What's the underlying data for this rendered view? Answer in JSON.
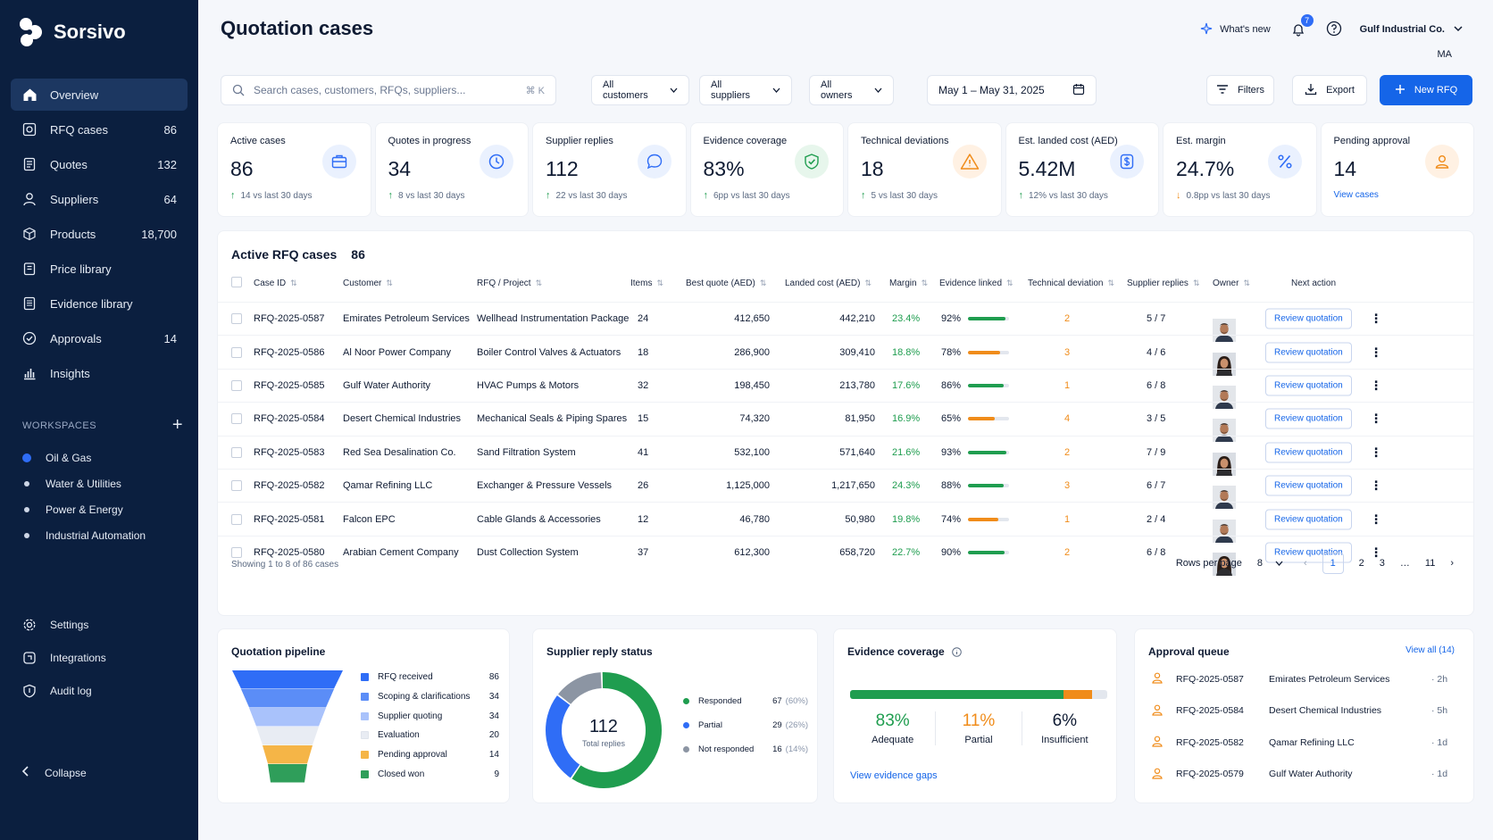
{
  "app": {
    "brand": "Sorsivo",
    "page_title": "Quotation cases"
  },
  "sidebar": {
    "items": [
      {
        "label": "Overview",
        "count": "",
        "icon": "home-icon",
        "active": true
      },
      {
        "label": "RFQ cases",
        "count": "86",
        "icon": "rfq-icon"
      },
      {
        "label": "Quotes",
        "count": "132",
        "icon": "quote-icon"
      },
      {
        "label": "Suppliers",
        "count": "64",
        "icon": "supplier-icon"
      },
      {
        "label": "Products",
        "count": "18,700",
        "icon": "cube-icon"
      },
      {
        "label": "Price library",
        "count": "",
        "icon": "price-library-icon"
      },
      {
        "label": "Evidence library",
        "count": "",
        "icon": "evidence-library-icon"
      },
      {
        "label": "Approvals",
        "count": "14",
        "icon": "check-circle-icon"
      },
      {
        "label": "Insights",
        "count": "",
        "icon": "bar-chart-icon"
      }
    ],
    "workspaces_label": "WORKSPACES",
    "workspaces": [
      "Oil & Gas",
      "Water & Utilities",
      "Power & Energy",
      "Industrial Automation"
    ],
    "bottom_items": [
      {
        "label": "Settings",
        "icon": "gear-icon"
      },
      {
        "label": "Integrations",
        "icon": "integrations-icon"
      },
      {
        "label": "Audit log",
        "icon": "shield-icon"
      }
    ],
    "collapse_label": "Collapse"
  },
  "header": {
    "whats_new": "What's new",
    "notifications": "7",
    "org_name": "Gulf Industrial Co.",
    "org_sub": "MA"
  },
  "toolbar": {
    "search_placeholder": "Search cases, customers, RFQs, suppliers...",
    "search_shortcut": "⌘ K",
    "customers": "All customers",
    "suppliers": "All suppliers",
    "owners": "All owners",
    "date_range": "May 1 – May 31, 2025",
    "filters": "Filters",
    "export": "Export",
    "new_rfq": "New RFQ"
  },
  "kpis": [
    {
      "label": "Active cases",
      "value": "86",
      "delta": "14 vs last 30 days",
      "dir": "up",
      "icon": "briefcase-icon",
      "bg": "#eaf1fe",
      "fg": "#2f6df6"
    },
    {
      "label": "Quotes in progress",
      "value": "34",
      "delta": "8 vs last 30 days",
      "dir": "up",
      "icon": "clock-icon",
      "bg": "#eaf1fe",
      "fg": "#2f6df6"
    },
    {
      "label": "Supplier replies",
      "value": "112",
      "delta": "22 vs last 30 days",
      "dir": "up",
      "icon": "chat-icon",
      "bg": "#eaf1fe",
      "fg": "#2f6df6"
    },
    {
      "label": "Evidence coverage",
      "value": "83%",
      "delta": "6pp vs last 30 days",
      "dir": "up",
      "icon": "shield-check-icon",
      "bg": "#e7f6ec",
      "fg": "#1f9d4f"
    },
    {
      "label": "Technical deviations",
      "value": "18",
      "delta": "5 vs last 30 days",
      "dir": "up",
      "icon": "warning-icon",
      "bg": "#fff1e3",
      "fg": "#f08c1a"
    },
    {
      "label": "Est. landed cost (AED)",
      "value": "5.42M",
      "delta": "12% vs last 30 days",
      "dir": "up",
      "icon": "currency-icon",
      "bg": "#eaf1fe",
      "fg": "#2f6df6"
    },
    {
      "label": "Est. margin",
      "value": "24.7%",
      "delta": "0.8pp vs last 30 days",
      "dir": "down",
      "icon": "percent-icon",
      "bg": "#eaf1fe",
      "fg": "#2f6df6"
    },
    {
      "label": "Pending approval",
      "value": "14",
      "delta": "",
      "link": "View cases",
      "icon": "user-pending-icon",
      "bg": "#fff1e3",
      "fg": "#f08c1a"
    }
  ],
  "table": {
    "title": "Active RFQ cases",
    "count": "86",
    "columns": [
      "Case ID",
      "Customer",
      "RFQ / Project",
      "Items",
      "Best quote (AED)",
      "Landed cost (AED)",
      "Margin",
      "Evidence linked",
      "Technical deviation",
      "Supplier replies",
      "Owner",
      "Next action"
    ],
    "action_label": "Review quotation",
    "rows": [
      {
        "id": "RFQ-2025-0587",
        "customer": "Emirates Petroleum Services",
        "project": "Wellhead Instrumentation Package",
        "items": "24",
        "best": "412,650",
        "landed": "442,210",
        "margin": "23.4%",
        "evidence": "92%",
        "ev": 0.92,
        "dev": "2",
        "replies": "5 / 7",
        "owner": "m"
      },
      {
        "id": "RFQ-2025-0586",
        "customer": "Al Noor Power Company",
        "project": "Boiler Control Valves & Actuators",
        "items": "18",
        "best": "286,900",
        "landed": "309,410",
        "margin": "18.8%",
        "evidence": "78%",
        "ev": 0.78,
        "dev": "3",
        "replies": "4 / 6",
        "owner": "f"
      },
      {
        "id": "RFQ-2025-0585",
        "customer": "Gulf Water Authority",
        "project": "HVAC Pumps & Motors",
        "items": "32",
        "best": "198,450",
        "landed": "213,780",
        "margin": "17.6%",
        "evidence": "86%",
        "ev": 0.86,
        "dev": "1",
        "replies": "6 / 8",
        "owner": "m"
      },
      {
        "id": "RFQ-2025-0584",
        "customer": "Desert Chemical Industries",
        "project": "Mechanical Seals & Piping Spares",
        "items": "15",
        "best": "74,320",
        "landed": "81,950",
        "margin": "16.9%",
        "evidence": "65%",
        "ev": 0.65,
        "dev": "4",
        "replies": "3 / 5",
        "owner": "m"
      },
      {
        "id": "RFQ-2025-0583",
        "customer": "Red Sea Desalination Co.",
        "project": "Sand Filtration System",
        "items": "41",
        "best": "532,100",
        "landed": "571,640",
        "margin": "21.6%",
        "evidence": "93%",
        "ev": 0.93,
        "dev": "2",
        "replies": "7 / 9",
        "owner": "f"
      },
      {
        "id": "RFQ-2025-0582",
        "customer": "Qamar Refining LLC",
        "project": "Exchanger & Pressure Vessels",
        "items": "26",
        "best": "1,125,000",
        "landed": "1,217,650",
        "margin": "24.3%",
        "evidence": "88%",
        "ev": 0.88,
        "dev": "3",
        "replies": "6 / 7",
        "owner": "m"
      },
      {
        "id": "RFQ-2025-0581",
        "customer": "Falcon EPC",
        "project": "Cable Glands & Accessories",
        "items": "12",
        "best": "46,780",
        "landed": "50,980",
        "margin": "19.8%",
        "evidence": "74%",
        "ev": 0.74,
        "dev": "1",
        "replies": "2 / 4",
        "owner": "m"
      },
      {
        "id": "RFQ-2025-0580",
        "customer": "Arabian Cement Company",
        "project": "Dust Collection System",
        "items": "37",
        "best": "612,300",
        "landed": "658,720",
        "margin": "22.7%",
        "evidence": "90%",
        "ev": 0.9,
        "dev": "2",
        "replies": "6 / 8",
        "owner": "f"
      }
    ],
    "footer": "Showing 1 to 8 of 86 cases",
    "rows_per_page_label": "Rows per page",
    "rows_per_page": "8",
    "pages": [
      "1",
      "2",
      "3",
      "…",
      "11"
    ]
  },
  "pipeline": {
    "title": "Quotation pipeline",
    "stages": [
      {
        "label": "RFQ received",
        "value": "86",
        "color": "#2f6df6"
      },
      {
        "label": "Scoping & clarifications",
        "value": "34",
        "color": "#5b8df7"
      },
      {
        "label": "Supplier quoting",
        "value": "34",
        "color": "#a9c2fb"
      },
      {
        "label": "Evaluation",
        "value": "20",
        "color": "#e8ecf3"
      },
      {
        "label": "Pending approval",
        "value": "14",
        "color": "#f5b547"
      },
      {
        "label": "Closed won",
        "value": "9",
        "color": "#2f9e5a"
      }
    ]
  },
  "reply_status": {
    "title": "Supplier reply status",
    "total": "112",
    "total_label": "Total replies",
    "segments": [
      {
        "label": "Responded",
        "value": "67",
        "pct": "(60%)",
        "frac": 0.6,
        "color": "#1f9d4f"
      },
      {
        "label": "Partial",
        "value": "29",
        "pct": "(26%)",
        "frac": 0.26,
        "color": "#2f6df6"
      },
      {
        "label": "Not responded",
        "value": "16",
        "pct": "(14%)",
        "frac": 0.14,
        "color": "#8c95a3"
      }
    ]
  },
  "evidence": {
    "title": "Evidence coverage",
    "segments": [
      {
        "value": "83%",
        "label": "Adequate",
        "frac": 0.83,
        "color": "#1f9d4f"
      },
      {
        "value": "11%",
        "label": "Partial",
        "frac": 0.11,
        "color": "#f08c1a"
      },
      {
        "value": "6%",
        "label": "Insufficient",
        "frac": 0.06,
        "color": "#e3e7ee"
      }
    ],
    "link": "View evidence gaps"
  },
  "approval_queue": {
    "title": "Approval queue",
    "view_all": "View all (14)",
    "rows": [
      {
        "id": "RFQ-2025-0587",
        "customer": "Emirates Petroleum Services",
        "age": "· 2h"
      },
      {
        "id": "RFQ-2025-0584",
        "customer": "Desert Chemical Industries",
        "age": "· 5h"
      },
      {
        "id": "RFQ-2025-0582",
        "customer": "Qamar Refining LLC",
        "age": "· 1d"
      },
      {
        "id": "RFQ-2025-0579",
        "customer": "Gulf Water Authority",
        "age": "· 1d"
      }
    ]
  }
}
